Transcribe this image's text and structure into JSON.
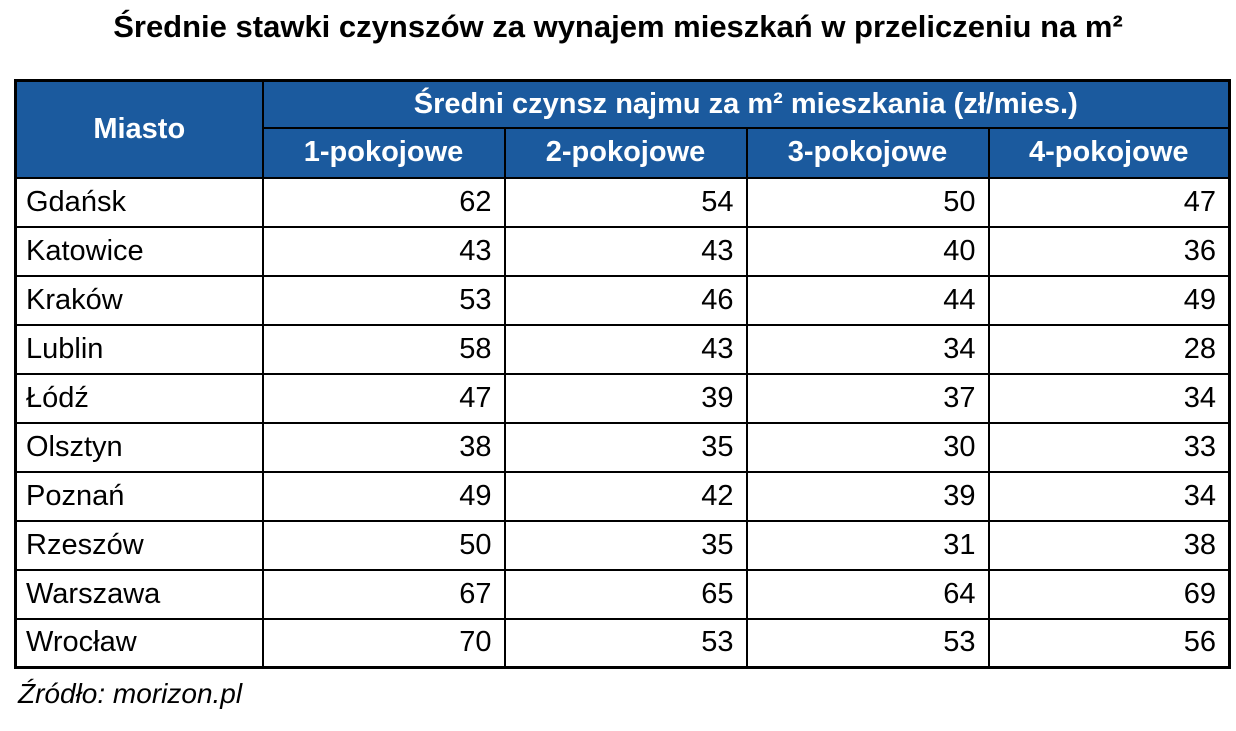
{
  "page": {
    "title": "Średnie stawki czynszów za wynajem mieszkań w przeliczeniu na m²",
    "source_note": "Źródło: morizon.pl"
  },
  "colors": {
    "header_background": "#1B5A9E",
    "header_text": "#FFFFFF",
    "grid_border": "#000000",
    "body_background": "#FFFFFF"
  },
  "chart_data": {
    "type": "table",
    "title": "Średnie stawki czynszów za wynajem mieszkań w przeliczeniu na m²",
    "group_header": "Średni czynsz najmu za m² mieszkania (zł/mies.)",
    "columns": [
      "Miasto",
      "1-pokojowe",
      "2-pokojowe",
      "3-pokojowe",
      "4-pokojowe"
    ],
    "rows": [
      {
        "city": "Gdańsk",
        "values": [
          62,
          54,
          50,
          47
        ]
      },
      {
        "city": "Katowice",
        "values": [
          43,
          43,
          40,
          36
        ]
      },
      {
        "city": "Kraków",
        "values": [
          53,
          46,
          44,
          49
        ]
      },
      {
        "city": "Lublin",
        "values": [
          58,
          43,
          34,
          28
        ]
      },
      {
        "city": "Łódź",
        "values": [
          47,
          39,
          37,
          34
        ]
      },
      {
        "city": "Olsztyn",
        "values": [
          38,
          35,
          30,
          33
        ]
      },
      {
        "city": "Poznań",
        "values": [
          49,
          42,
          39,
          34
        ]
      },
      {
        "city": "Rzeszów",
        "values": [
          50,
          35,
          31,
          38
        ]
      },
      {
        "city": "Warszawa",
        "values": [
          67,
          65,
          64,
          69
        ]
      },
      {
        "city": "Wrocław",
        "values": [
          70,
          53,
          53,
          56
        ]
      }
    ],
    "source": "Źródło: morizon.pl",
    "layout": {
      "grid": "on",
      "header_rows": 2,
      "city_column_align": "left",
      "value_columns_align": "right"
    }
  }
}
